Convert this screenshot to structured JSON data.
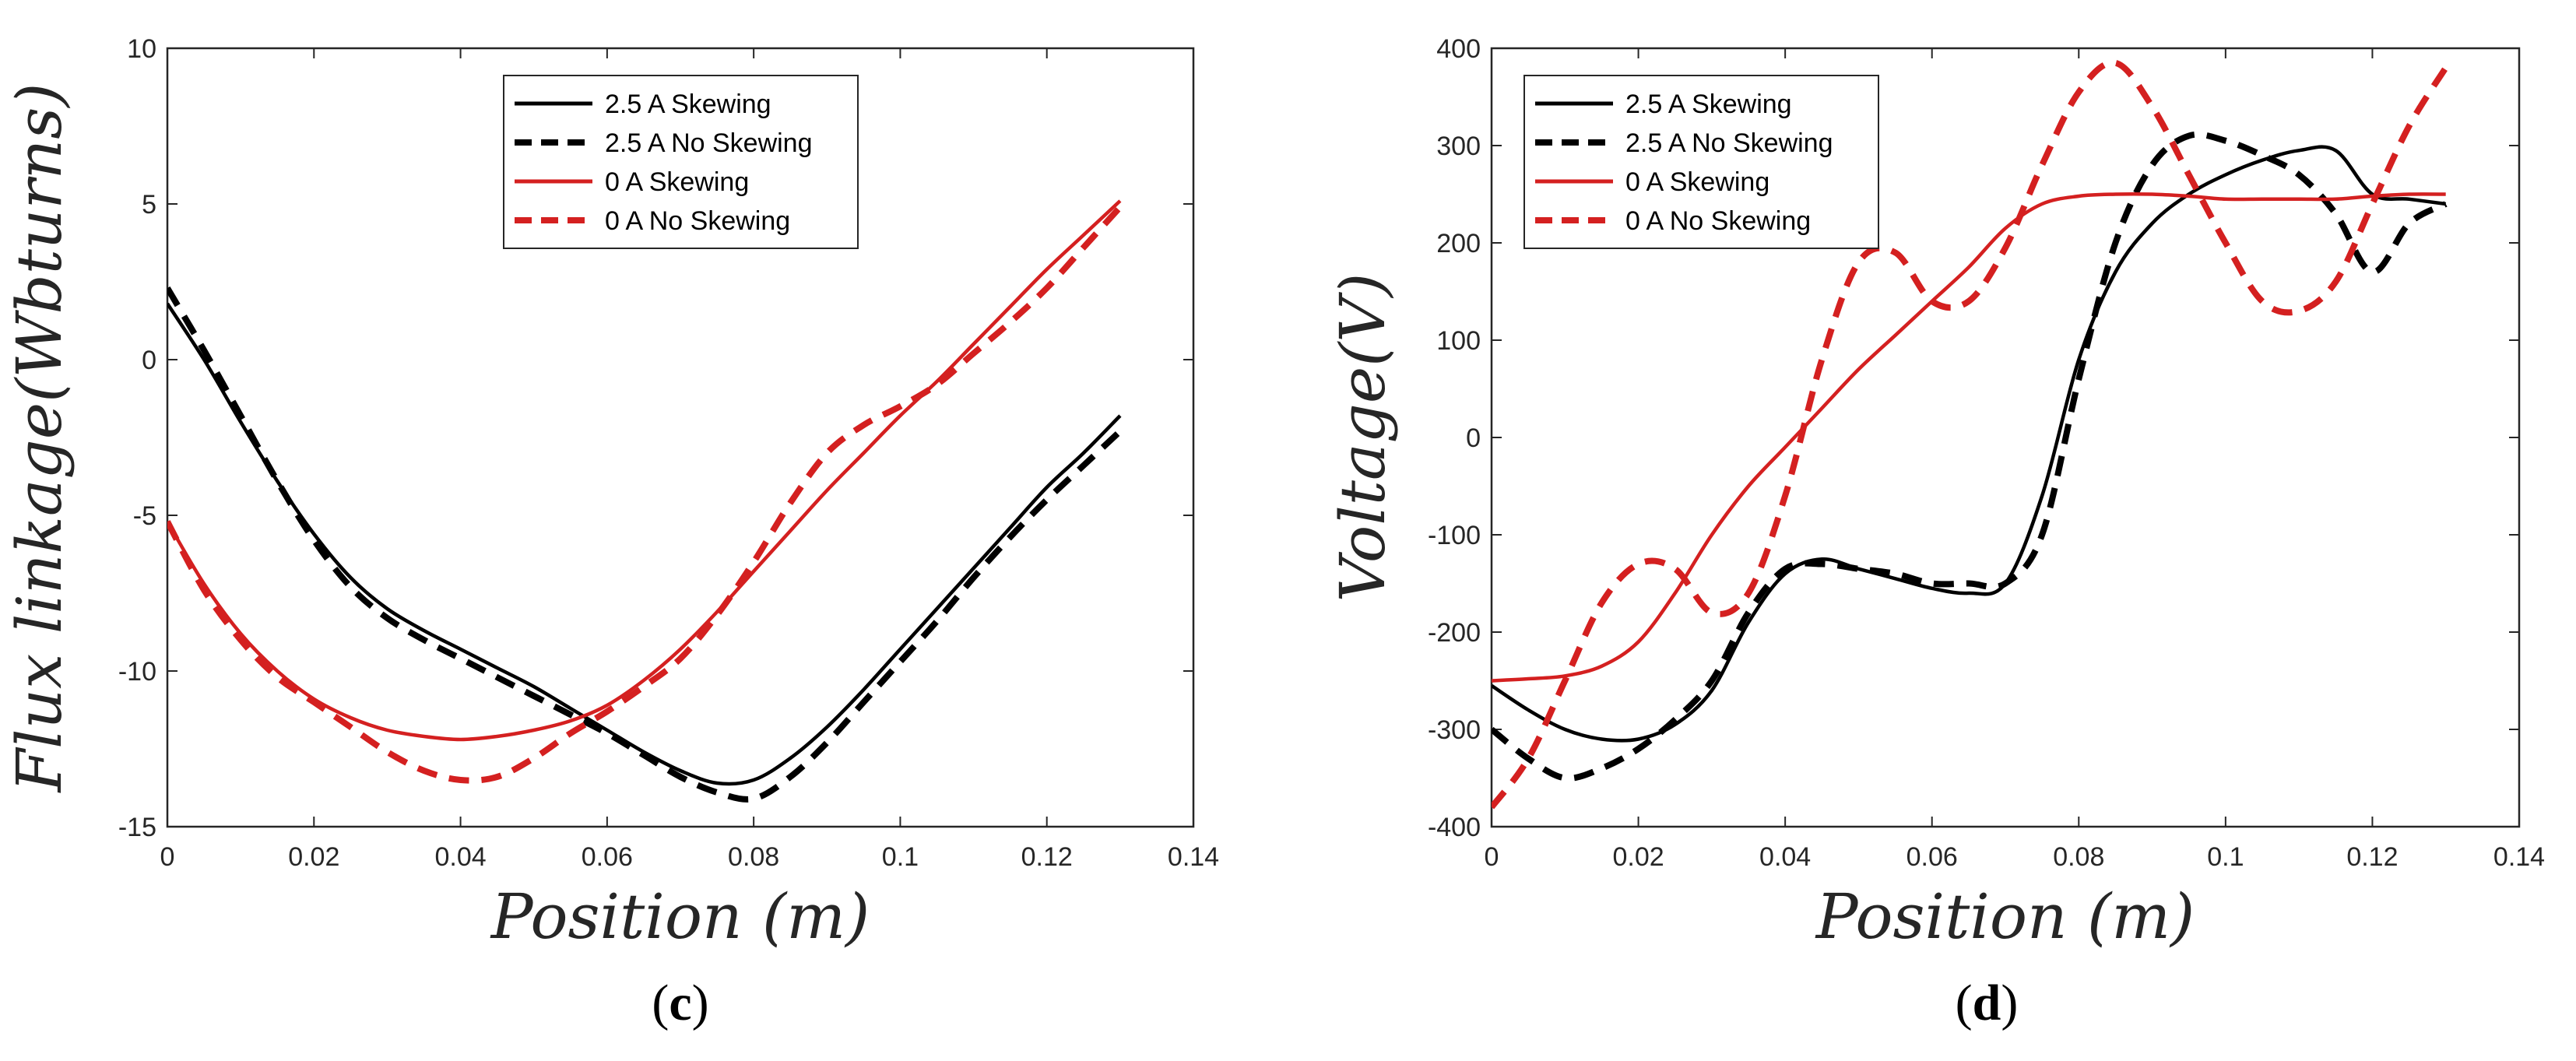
{
  "chart_data": [
    {
      "type": "line",
      "panel_label": {
        "open": "(",
        "letter": "c",
        "close": ")"
      },
      "xlabel": "Position (m)",
      "ylabel": "Flux linkage(Wbturns)",
      "xlim": [
        0,
        0.14
      ],
      "ylim": [
        -15,
        10
      ],
      "xticks": [
        0,
        0.02,
        0.04,
        0.06,
        0.08,
        0.1,
        0.12,
        0.14
      ],
      "xtick_labels": [
        "0",
        "0.02",
        "0.04",
        "0.06",
        "0.08",
        "0.1",
        "0.12",
        "0.14"
      ],
      "yticks": [
        -15,
        -10,
        -5,
        0,
        5,
        10
      ],
      "ytick_labels": [
        "-15",
        "-10",
        "-5",
        "0",
        "5",
        "10"
      ],
      "legend_position": "top-center",
      "series": [
        {
          "name": "2.5 A Skewing",
          "color": "#000000",
          "dash": "solid",
          "x": [
            0,
            0.005,
            0.01,
            0.015,
            0.02,
            0.025,
            0.03,
            0.035,
            0.04,
            0.045,
            0.05,
            0.055,
            0.06,
            0.065,
            0.07,
            0.075,
            0.08,
            0.085,
            0.09,
            0.095,
            0.1,
            0.105,
            0.11,
            0.115,
            0.12,
            0.125,
            0.13
          ],
          "y": [
            1.8,
            0.0,
            -2.0,
            -3.9,
            -5.6,
            -7.0,
            -8.0,
            -8.7,
            -9.3,
            -9.9,
            -10.5,
            -11.2,
            -11.9,
            -12.6,
            -13.2,
            -13.6,
            -13.5,
            -12.8,
            -11.8,
            -10.6,
            -9.3,
            -8.0,
            -6.7,
            -5.4,
            -4.1,
            -3.0,
            -1.8
          ]
        },
        {
          "name": "2.5 A No Skewing",
          "color": "#000000",
          "dash": "dashed",
          "x": [
            0,
            0.005,
            0.01,
            0.015,
            0.02,
            0.025,
            0.03,
            0.035,
            0.04,
            0.045,
            0.05,
            0.055,
            0.06,
            0.065,
            0.07,
            0.075,
            0.08,
            0.085,
            0.09,
            0.095,
            0.1,
            0.105,
            0.11,
            0.115,
            0.12,
            0.125,
            0.13
          ],
          "y": [
            2.3,
            0.3,
            -1.8,
            -3.9,
            -5.8,
            -7.3,
            -8.3,
            -9.0,
            -9.6,
            -10.2,
            -10.8,
            -11.4,
            -12.0,
            -12.7,
            -13.4,
            -13.9,
            -14.1,
            -13.4,
            -12.3,
            -11.0,
            -9.7,
            -8.4,
            -7.0,
            -5.7,
            -4.5,
            -3.4,
            -2.3
          ]
        },
        {
          "name": "0 A Skewing",
          "color": "#d42020",
          "dash": "solid",
          "x": [
            0,
            0.005,
            0.01,
            0.015,
            0.02,
            0.025,
            0.03,
            0.035,
            0.04,
            0.045,
            0.05,
            0.055,
            0.06,
            0.065,
            0.07,
            0.075,
            0.08,
            0.085,
            0.09,
            0.095,
            0.1,
            0.105,
            0.11,
            0.115,
            0.12,
            0.125,
            0.13
          ],
          "y": [
            -5.2,
            -7.2,
            -8.8,
            -10.0,
            -10.9,
            -11.5,
            -11.9,
            -12.1,
            -12.2,
            -12.1,
            -11.9,
            -11.6,
            -11.1,
            -10.3,
            -9.3,
            -8.1,
            -6.8,
            -5.5,
            -4.2,
            -3.0,
            -1.8,
            -0.7,
            0.5,
            1.7,
            2.9,
            4.0,
            5.1
          ]
        },
        {
          "name": "0 A No Skewing",
          "color": "#d42020",
          "dash": "dashed",
          "x": [
            0,
            0.005,
            0.01,
            0.015,
            0.02,
            0.025,
            0.03,
            0.035,
            0.04,
            0.045,
            0.05,
            0.055,
            0.06,
            0.065,
            0.07,
            0.075,
            0.08,
            0.085,
            0.09,
            0.095,
            0.1,
            0.105,
            0.11,
            0.115,
            0.12,
            0.125,
            0.13
          ],
          "y": [
            -5.2,
            -7.4,
            -9.0,
            -10.2,
            -11.0,
            -11.8,
            -12.6,
            -13.2,
            -13.5,
            -13.4,
            -12.8,
            -12.0,
            -11.3,
            -10.5,
            -9.6,
            -8.2,
            -6.5,
            -4.6,
            -3.0,
            -2.1,
            -1.5,
            -0.8,
            0.2,
            1.2,
            2.3,
            3.6,
            4.9
          ]
        }
      ]
    },
    {
      "type": "line",
      "panel_label": {
        "open": "(",
        "letter": "d",
        "close": ")"
      },
      "xlabel": "Position (m)",
      "ylabel": "Voltage(V)",
      "xlim": [
        0,
        0.14
      ],
      "ylim": [
        -400,
        400
      ],
      "xticks": [
        0,
        0.02,
        0.04,
        0.06,
        0.08,
        0.1,
        0.12,
        0.14
      ],
      "xtick_labels": [
        "0",
        "0.02",
        "0.04",
        "0.06",
        "0.08",
        "0.1",
        "0.12",
        "0.14"
      ],
      "yticks": [
        -400,
        -300,
        -200,
        -100,
        0,
        100,
        200,
        300,
        400
      ],
      "ytick_labels": [
        "-400",
        "-300",
        "-200",
        "-100",
        "0",
        "100",
        "200",
        "300",
        "400"
      ],
      "legend_position": "top-left",
      "series": [
        {
          "name": "2.5 A Skewing",
          "color": "#000000",
          "dash": "solid",
          "x": [
            0,
            0.005,
            0.01,
            0.015,
            0.02,
            0.025,
            0.03,
            0.035,
            0.04,
            0.045,
            0.05,
            0.055,
            0.06,
            0.065,
            0.07,
            0.075,
            0.08,
            0.085,
            0.09,
            0.095,
            0.1,
            0.105,
            0.11,
            0.115,
            0.12,
            0.125,
            0.13
          ],
          "y": [
            -255,
            -280,
            -300,
            -310,
            -310,
            -295,
            -260,
            -190,
            -140,
            -125,
            -135,
            -145,
            -155,
            -160,
            -150,
            -60,
            80,
            170,
            220,
            250,
            270,
            285,
            295,
            295,
            250,
            245,
            240
          ]
        },
        {
          "name": "2.5 A No Skewing",
          "color": "#000000",
          "dash": "dashed",
          "x": [
            0,
            0.005,
            0.01,
            0.015,
            0.02,
            0.025,
            0.03,
            0.035,
            0.04,
            0.045,
            0.05,
            0.055,
            0.06,
            0.065,
            0.07,
            0.075,
            0.08,
            0.085,
            0.09,
            0.095,
            0.1,
            0.105,
            0.11,
            0.115,
            0.12,
            0.125,
            0.13
          ],
          "y": [
            -300,
            -330,
            -350,
            -340,
            -320,
            -290,
            -250,
            -180,
            -135,
            -130,
            -135,
            -140,
            -150,
            -150,
            -150,
            -100,
            60,
            200,
            280,
            310,
            305,
            290,
            270,
            230,
            170,
            220,
            240
          ]
        },
        {
          "name": "0 A Skewing",
          "color": "#d42020",
          "dash": "solid",
          "x": [
            0,
            0.005,
            0.01,
            0.015,
            0.02,
            0.025,
            0.03,
            0.035,
            0.04,
            0.045,
            0.05,
            0.055,
            0.06,
            0.065,
            0.07,
            0.075,
            0.08,
            0.085,
            0.09,
            0.095,
            0.1,
            0.105,
            0.11,
            0.115,
            0.12,
            0.125,
            0.13
          ],
          "y": [
            -250,
            -248,
            -245,
            -235,
            -210,
            -160,
            -100,
            -50,
            -10,
            30,
            70,
            105,
            140,
            175,
            215,
            240,
            248,
            250,
            250,
            248,
            245,
            245,
            245,
            245,
            248,
            250,
            250
          ]
        },
        {
          "name": "0 A No Skewing",
          "color": "#d42020",
          "dash": "dashed",
          "x": [
            0,
            0.005,
            0.01,
            0.015,
            0.02,
            0.025,
            0.03,
            0.035,
            0.04,
            0.045,
            0.05,
            0.055,
            0.06,
            0.065,
            0.07,
            0.075,
            0.08,
            0.085,
            0.09,
            0.095,
            0.1,
            0.105,
            0.11,
            0.115,
            0.12,
            0.125,
            0.13
          ],
          "y": [
            -380,
            -330,
            -250,
            -170,
            -130,
            -135,
            -180,
            -160,
            -60,
            80,
            180,
            190,
            140,
            140,
            195,
            280,
            355,
            385,
            340,
            270,
            200,
            140,
            130,
            160,
            240,
            320,
            380
          ]
        }
      ]
    }
  ]
}
